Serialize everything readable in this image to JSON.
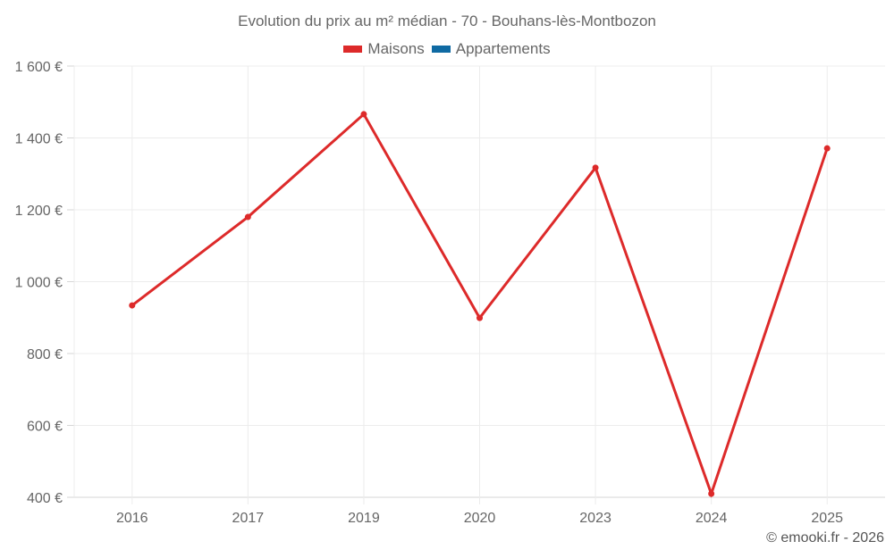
{
  "chart": {
    "title": "Evolution du prix au m² médian - 70 - Bouhans-lès-Montbozon",
    "legend": [
      {
        "label": "Maisons",
        "color": "#dd2a2a"
      },
      {
        "label": "Appartements",
        "color": "#0f6aa3"
      }
    ],
    "credit": "© emooki.fr - 2026"
  },
  "chart_data": {
    "type": "line",
    "title": "Evolution du prix au m² médian - 70 - Bouhans-lès-Montbozon",
    "xlabel": "",
    "ylabel": "",
    "categories": [
      "2016",
      "2017",
      "2019",
      "2020",
      "2023",
      "2024",
      "2025"
    ],
    "series": [
      {
        "name": "Maisons",
        "color": "#dd2a2a",
        "values": [
          934,
          1180,
          1466,
          899,
          1317,
          410,
          1371
        ]
      },
      {
        "name": "Appartements",
        "color": "#0f6aa3",
        "values": []
      }
    ],
    "yticks": [
      "400 €",
      "600 €",
      "800 €",
      "1 000 €",
      "1 200 €",
      "1 400 €",
      "1 600 €"
    ],
    "ylim": [
      400,
      1600
    ],
    "grid": true,
    "legend_position": "top"
  }
}
